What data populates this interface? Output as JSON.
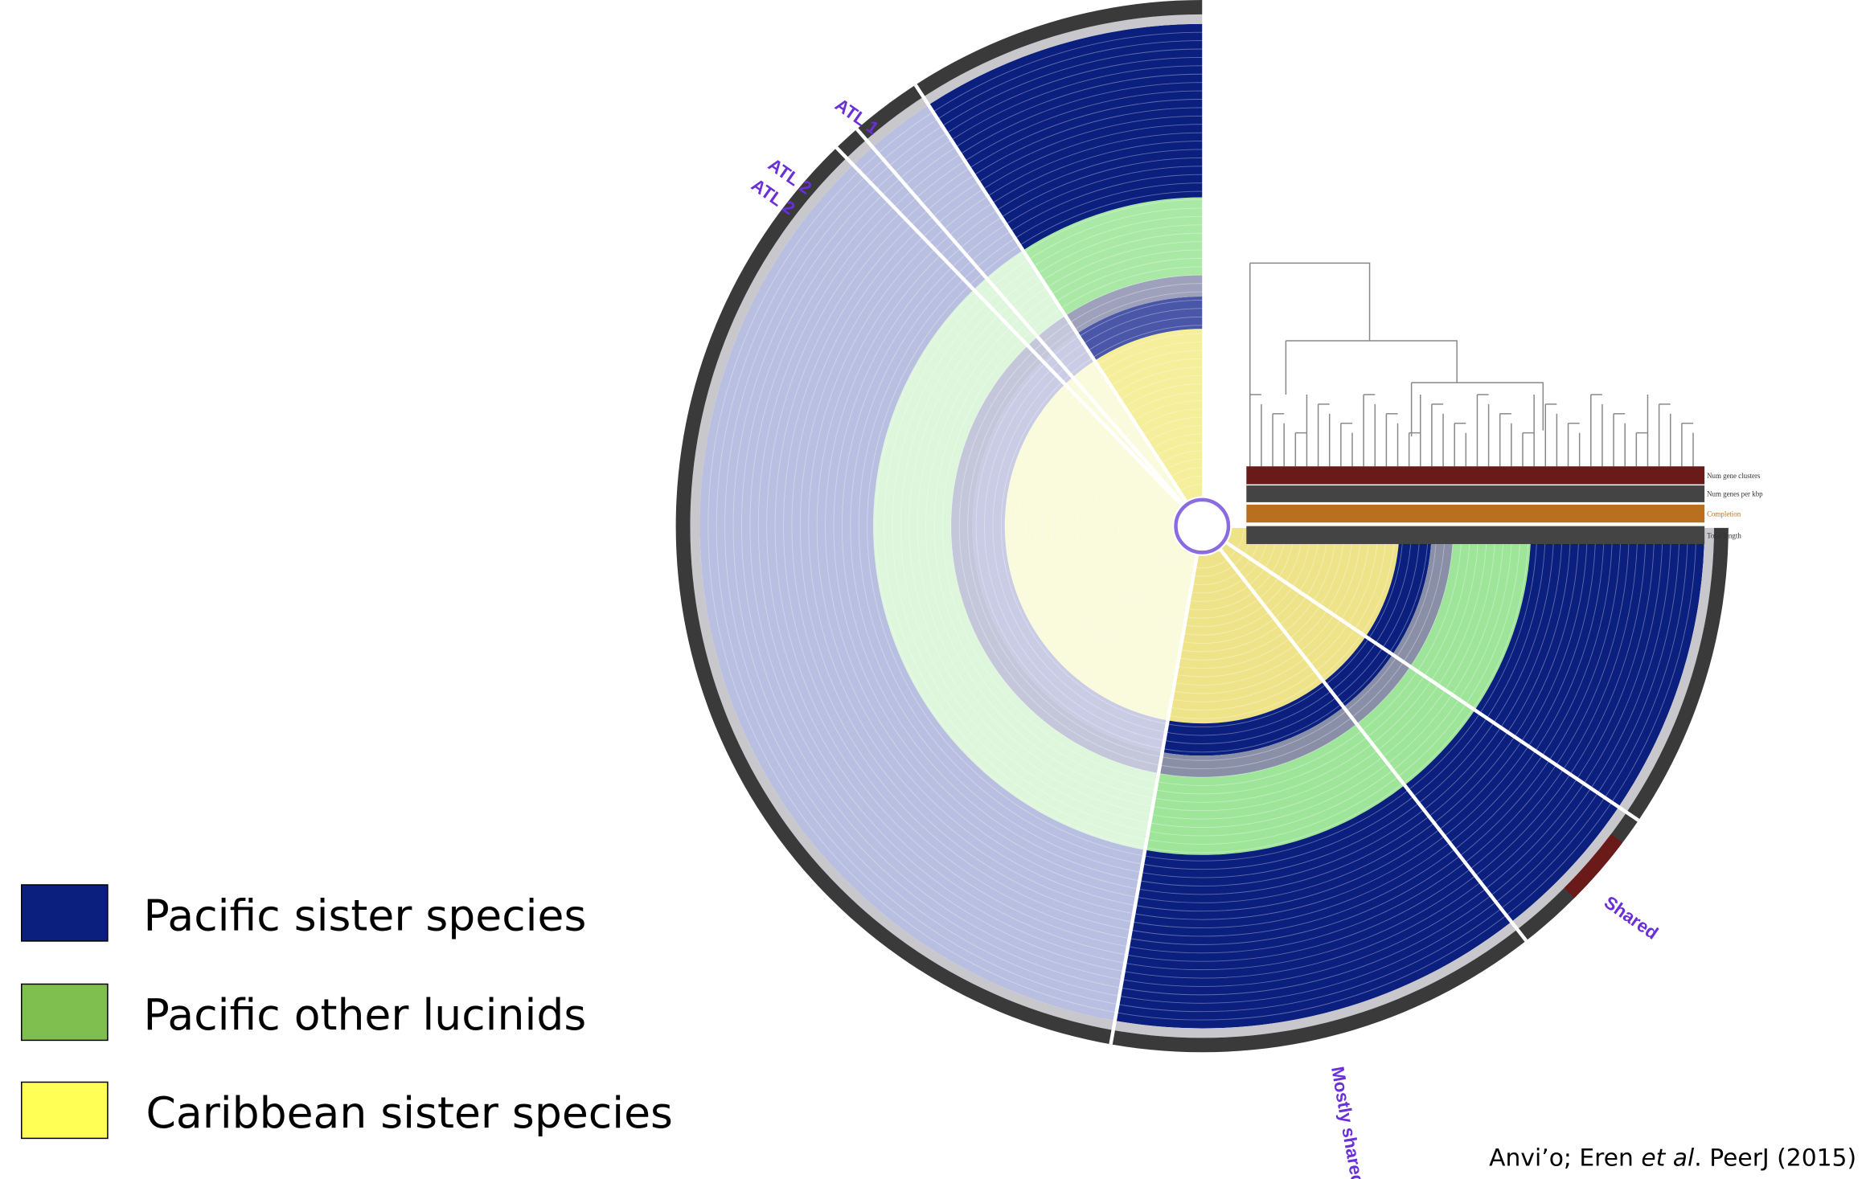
{
  "legend": [
    {
      "label": "Pacific sister species"
    },
    {
      "label": "Pacific other lucinids"
    },
    {
      "label": "Caribbean sister species"
    }
  ],
  "bin_labels": [
    "ATL 1",
    "ATL 2",
    "ATL 2",
    "Shared",
    "Mostly shared"
  ],
  "layer_labels": [
    "Num gene clusters",
    "Num genes per kbp",
    "Completion",
    "Total length"
  ],
  "citation": {
    "before": "Anvi’o; Eren ",
    "italic": "et al",
    "after": ". PeerJ (2015)"
  }
}
